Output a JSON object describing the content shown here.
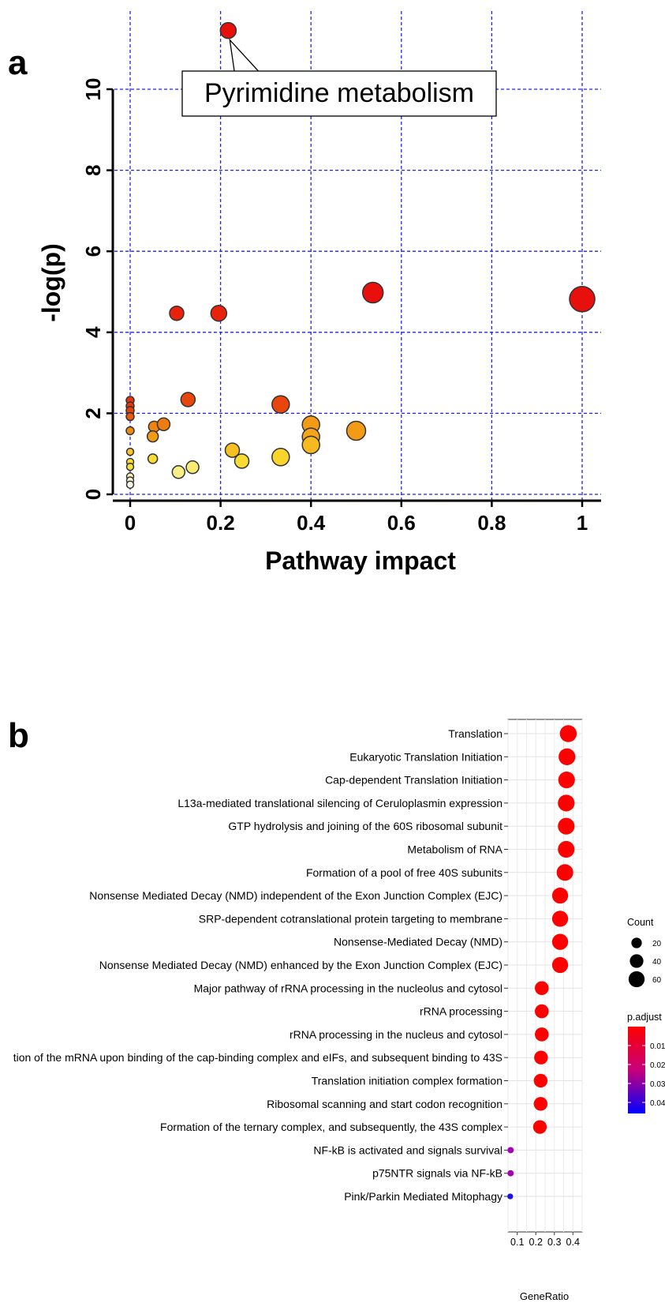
{
  "panels": {
    "a": "a",
    "b": "b"
  },
  "chart_data": [
    {
      "type": "scatter",
      "panel": "a",
      "xlabel": "Pathway impact",
      "ylabel": "-log(p)",
      "xlim": [
        0,
        1
      ],
      "ylim": [
        0,
        11.5
      ],
      "xticks": [
        {
          "v": 0,
          "label": "0"
        },
        {
          "v": 0.2,
          "label": "0.2"
        },
        {
          "v": 0.4,
          "label": "0.4"
        },
        {
          "v": 0.6,
          "label": "0.6"
        },
        {
          "v": 0.8,
          "label": "0.8"
        },
        {
          "v": 1,
          "label": "1"
        }
      ],
      "yticks": [
        {
          "v": 0,
          "label": "0"
        },
        {
          "v": 2,
          "label": "2"
        },
        {
          "v": 4,
          "label": "4"
        },
        {
          "v": 6,
          "label": "6"
        },
        {
          "v": 8,
          "label": "8"
        },
        {
          "v": 10,
          "label": "10"
        }
      ],
      "grid": true,
      "annotation": {
        "text": "Pyrimidine metabolism",
        "x": 0.217,
        "y": 11.45
      },
      "points": [
        {
          "x": 0.217,
          "y": 11.45,
          "color": "#e8100c",
          "size": 10
        },
        {
          "x": 0.537,
          "y": 4.98,
          "color": "#e8100c",
          "size": 13
        },
        {
          "x": 1.0,
          "y": 4.82,
          "color": "#e8100c",
          "size": 16
        },
        {
          "x": 0.103,
          "y": 4.47,
          "color": "#e8220c",
          "size": 9
        },
        {
          "x": 0.196,
          "y": 4.47,
          "color": "#e8220c",
          "size": 10
        },
        {
          "x": 0.128,
          "y": 2.34,
          "color": "#e8460c",
          "size": 9
        },
        {
          "x": 0.333,
          "y": 2.22,
          "color": "#e8460c",
          "size": 11
        },
        {
          "x": 0,
          "y": 2.32,
          "color": "#e8320c",
          "size": 5
        },
        {
          "x": 0,
          "y": 2.18,
          "color": "#e8380c",
          "size": 5
        },
        {
          "x": 0,
          "y": 2.07,
          "color": "#e8420c",
          "size": 5
        },
        {
          "x": 0,
          "y": 1.92,
          "color": "#ec560e",
          "size": 5
        },
        {
          "x": 0,
          "y": 1.57,
          "color": "#f08a10",
          "size": 5
        },
        {
          "x": 0.053,
          "y": 1.67,
          "color": "#ef8410",
          "size": 7
        },
        {
          "x": 0.074,
          "y": 1.73,
          "color": "#ee7c10",
          "size": 8
        },
        {
          "x": 0.05,
          "y": 1.43,
          "color": "#f39a16",
          "size": 7
        },
        {
          "x": 0.4,
          "y": 1.72,
          "color": "#f39a16",
          "size": 11
        },
        {
          "x": 0.5,
          "y": 1.57,
          "color": "#f39a16",
          "size": 12
        },
        {
          "x": 0.4,
          "y": 1.42,
          "color": "#f5a41c",
          "size": 11
        },
        {
          "x": 0.4,
          "y": 1.22,
          "color": "#f8b820",
          "size": 11
        },
        {
          "x": 0.226,
          "y": 1.09,
          "color": "#f8bf22",
          "size": 9
        },
        {
          "x": 0,
          "y": 1.05,
          "color": "#f8c428",
          "size": 4.5
        },
        {
          "x": 0.333,
          "y": 0.92,
          "color": "#f8d52a",
          "size": 11
        },
        {
          "x": 0.05,
          "y": 0.88,
          "color": "#f8dc34",
          "size": 6
        },
        {
          "x": 0.247,
          "y": 0.82,
          "color": "#f8dc34",
          "size": 9
        },
        {
          "x": 0,
          "y": 0.8,
          "color": "#f8dc3a",
          "size": 4.5
        },
        {
          "x": 0,
          "y": 0.68,
          "color": "#f8e044",
          "size": 4.5
        },
        {
          "x": 0.138,
          "y": 0.67,
          "color": "#f8ea72",
          "size": 8
        },
        {
          "x": 0.107,
          "y": 0.55,
          "color": "#f8ee88",
          "size": 8
        },
        {
          "x": 0,
          "y": 0.44,
          "color": "#fbf3bc",
          "size": 4.5
        },
        {
          "x": 0,
          "y": 0.34,
          "color": "#fcf7d0",
          "size": 4.5
        },
        {
          "x": 0,
          "y": 0.24,
          "color": "#fdfbe8",
          "size": 4.5
        }
      ]
    },
    {
      "type": "scatter",
      "panel": "b",
      "xlabel": "GeneRatio",
      "ylabel": "",
      "xlim": [
        0.05,
        0.45
      ],
      "xticks": [
        {
          "v": 0.1,
          "label": "0.1"
        },
        {
          "v": 0.2,
          "label": "0.2"
        },
        {
          "v": 0.3,
          "label": "0.3"
        },
        {
          "v": 0.4,
          "label": "0.4"
        }
      ],
      "grid": true,
      "categories": [
        "Translation",
        "Eukaryotic Translation Initiation",
        "Cap-dependent Translation Initiation",
        "L13a-mediated translational silencing of Ceruloplasmin expression",
        "GTP hydrolysis and joining of the 60S ribosomal subunit",
        "Metabolism of RNA",
        "Formation of a pool of free 40S subunits",
        "Nonsense Mediated Decay (NMD) independent of the Exon Junction Complex (EJC)",
        "SRP-dependent cotranslational protein targeting to membrane",
        "Nonsense-Mediated Decay (NMD)",
        "Nonsense Mediated Decay (NMD) enhanced by the Exon Junction Complex (EJC)",
        "Major pathway of rRNA processing in the nucleolus and cytosol",
        "rRNA processing",
        "rRNA processing in the nucleus and cytosol",
        "tion of the mRNA upon binding of the cap-binding complex and eIFs, and subsequent binding to 43S",
        "Translation initiation complex formation",
        "Ribosomal scanning and start codon recognition",
        "Formation of the ternary complex, and subsequently, the 43S complex",
        "NF-kB is activated and signals survival",
        "p75NTR signals via NF-kB",
        "Pink/Parkin Mediated Mitophagy"
      ],
      "gene_ratio": [
        0.375,
        0.368,
        0.366,
        0.364,
        0.364,
        0.364,
        0.357,
        0.331,
        0.331,
        0.331,
        0.331,
        0.232,
        0.232,
        0.232,
        0.228,
        0.226,
        0.226,
        0.222,
        0.064,
        0.064,
        0.062
      ],
      "count": [
        68,
        67,
        66,
        66,
        66,
        66,
        65,
        60,
        60,
        60,
        60,
        42,
        42,
        42,
        41,
        41,
        41,
        40,
        4,
        4,
        3
      ],
      "color": [
        "#ff0000",
        "#ff0000",
        "#ff0000",
        "#ff0000",
        "#ff0000",
        "#ff0000",
        "#ff0000",
        "#ff0000",
        "#ff0000",
        "#ff0000",
        "#ff0000",
        "#ff0000",
        "#ff0000",
        "#ff0000",
        "#ff0000",
        "#ff0000",
        "#ff0000",
        "#ff0000",
        "#a300b5",
        "#a300b5",
        "#1a14e6"
      ],
      "legend_size": {
        "title": "Count",
        "entries": [
          {
            "label": "20",
            "count": 20
          },
          {
            "label": "40",
            "count": 40
          },
          {
            "label": "60",
            "count": 60
          }
        ]
      },
      "legend_color": {
        "title": "p.adjust",
        "ticks": [
          "0.01",
          "0.02",
          "0.03",
          "0.04"
        ],
        "low": "#ff0000",
        "high": "#0000ff"
      }
    }
  ]
}
